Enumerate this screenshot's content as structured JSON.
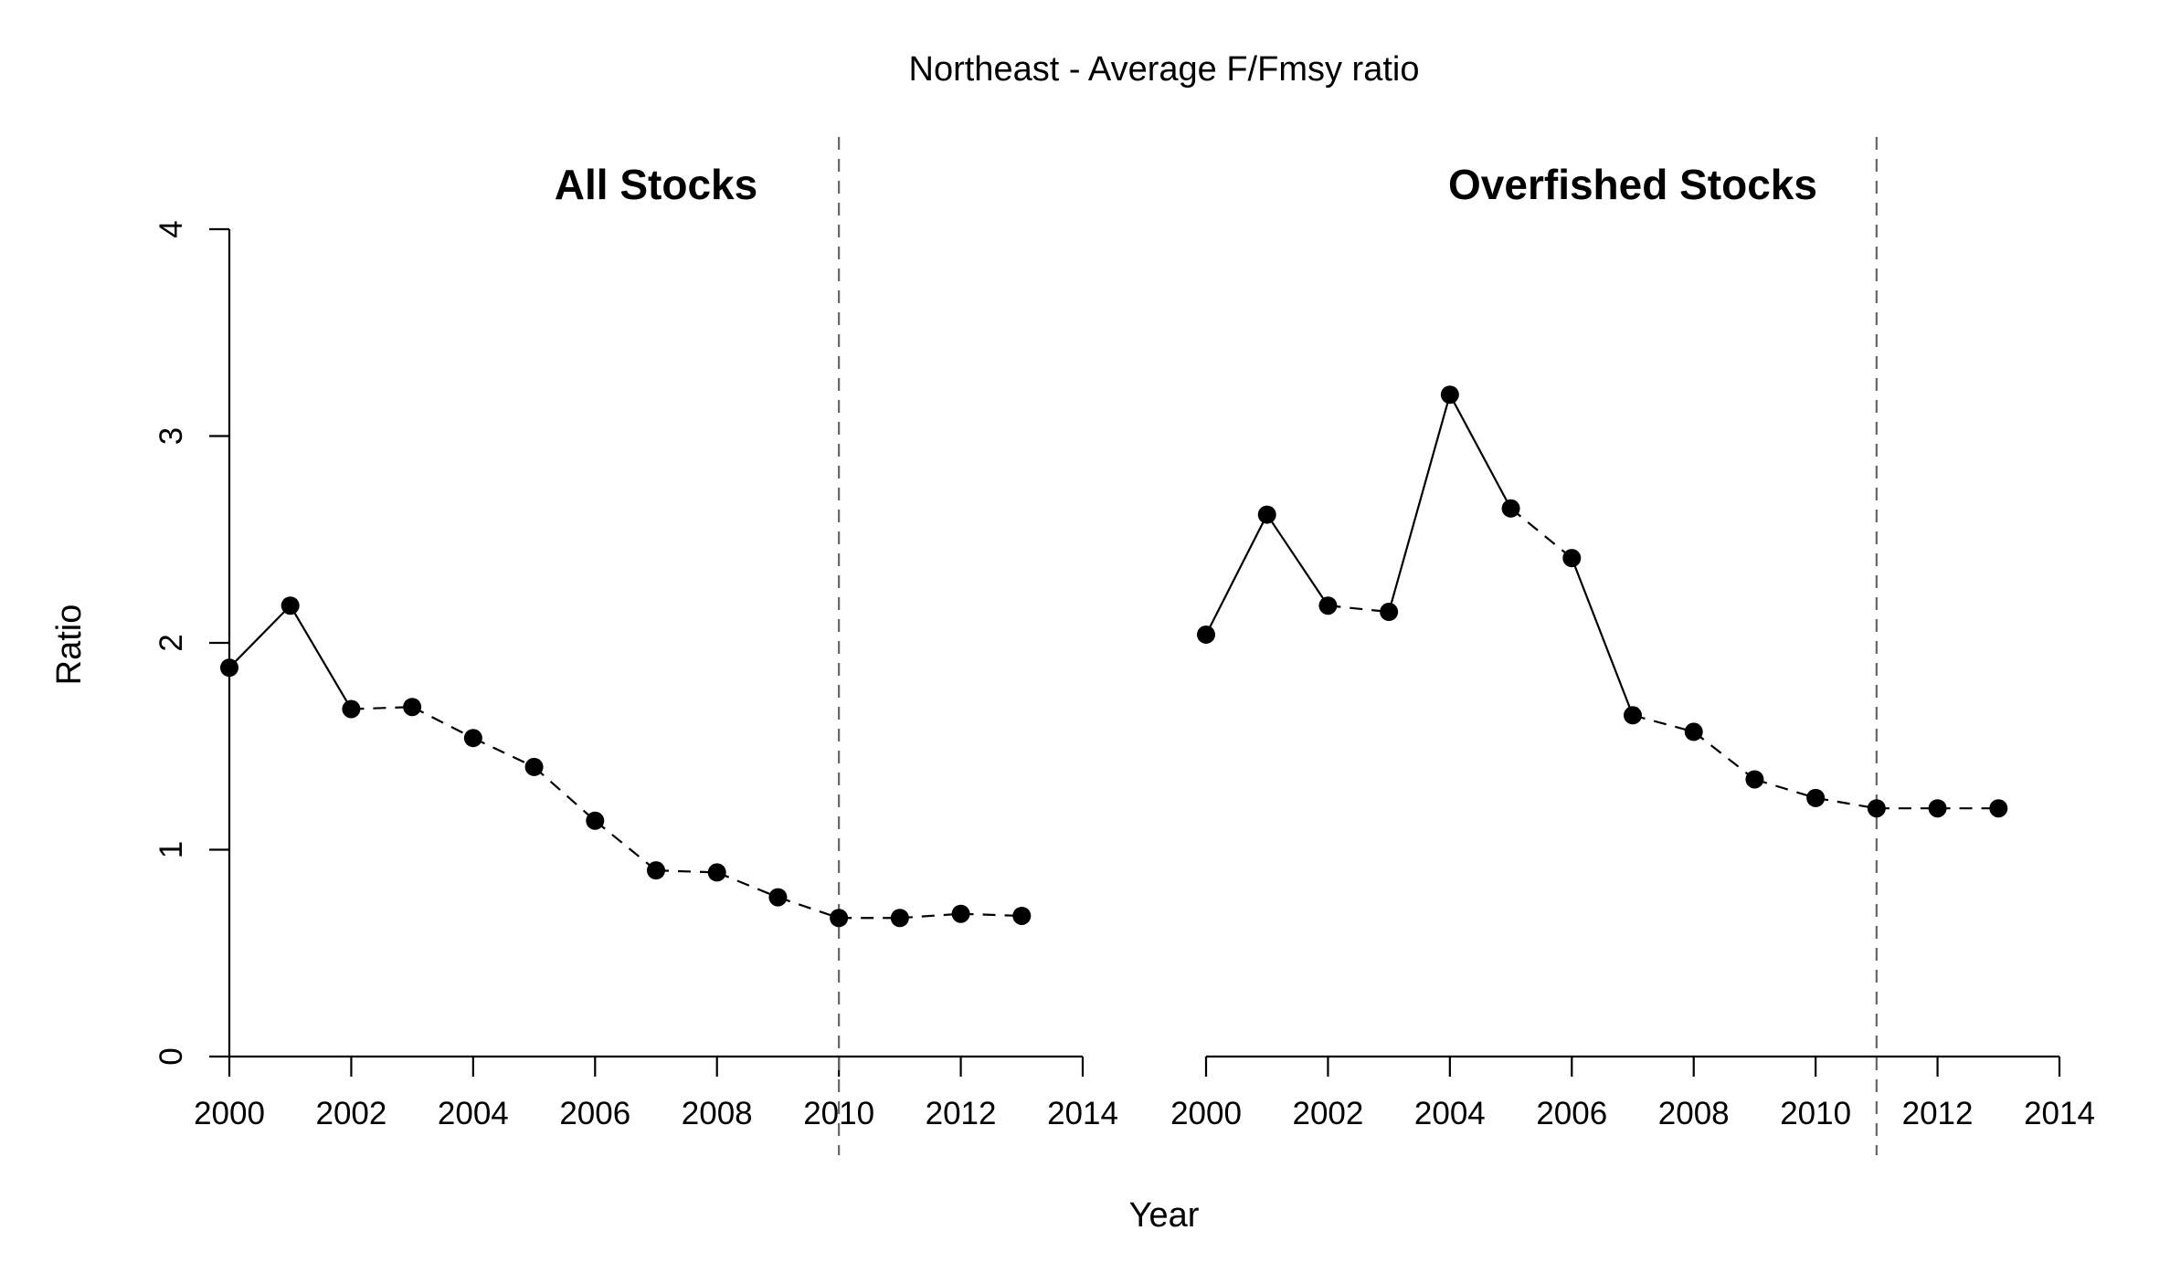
{
  "title": "Northeast - Average F/Fmsy ratio",
  "xlabel": "Year",
  "ylabel": "Ratio",
  "chart_data": [
    {
      "type": "line",
      "title": "All Stocks",
      "x": [
        2000,
        2001,
        2002,
        2003,
        2004,
        2005,
        2006,
        2007,
        2008,
        2009,
        2010,
        2011,
        2012,
        2013
      ],
      "values": [
        1.88,
        2.18,
        1.68,
        1.69,
        1.54,
        1.4,
        1.14,
        0.9,
        0.89,
        0.77,
        0.67,
        0.67,
        0.69,
        0.68
      ],
      "segment_styles": [
        "solid",
        "solid",
        "dashed",
        "dashed",
        "dashed",
        "dashed",
        "dashed",
        "dashed",
        "dashed",
        "dashed",
        "dashed",
        "dashed",
        "dashed"
      ],
      "reference_line_x": 2010,
      "xlim": [
        2000,
        2014
      ],
      "ylim": [
        0,
        4
      ],
      "xticks": [
        "2000",
        "2002",
        "2004",
        "2006",
        "2008",
        "2010",
        "2012",
        "2014"
      ],
      "yticks": [
        "0",
        "1",
        "2",
        "3",
        "4"
      ]
    },
    {
      "type": "line",
      "title": "Overfished Stocks",
      "x": [
        2000,
        2001,
        2002,
        2003,
        2004,
        2005,
        2006,
        2007,
        2008,
        2009,
        2010,
        2011,
        2012,
        2013
      ],
      "values": [
        2.04,
        2.62,
        2.18,
        2.15,
        3.2,
        2.65,
        2.41,
        1.65,
        1.57,
        1.34,
        1.25,
        1.2,
        1.2,
        1.2
      ],
      "segment_styles": [
        "solid",
        "solid",
        "dashed",
        "solid",
        "solid",
        "dashed",
        "solid",
        "dashed",
        "dashed",
        "dashed",
        "dashed",
        "dashed",
        "dashed"
      ],
      "reference_line_x": 2011,
      "xlim": [
        2000,
        2014
      ],
      "ylim": [
        0,
        4
      ],
      "xticks": [
        "2000",
        "2002",
        "2004",
        "2006",
        "2008",
        "2010",
        "2012",
        "2014"
      ]
    }
  ]
}
